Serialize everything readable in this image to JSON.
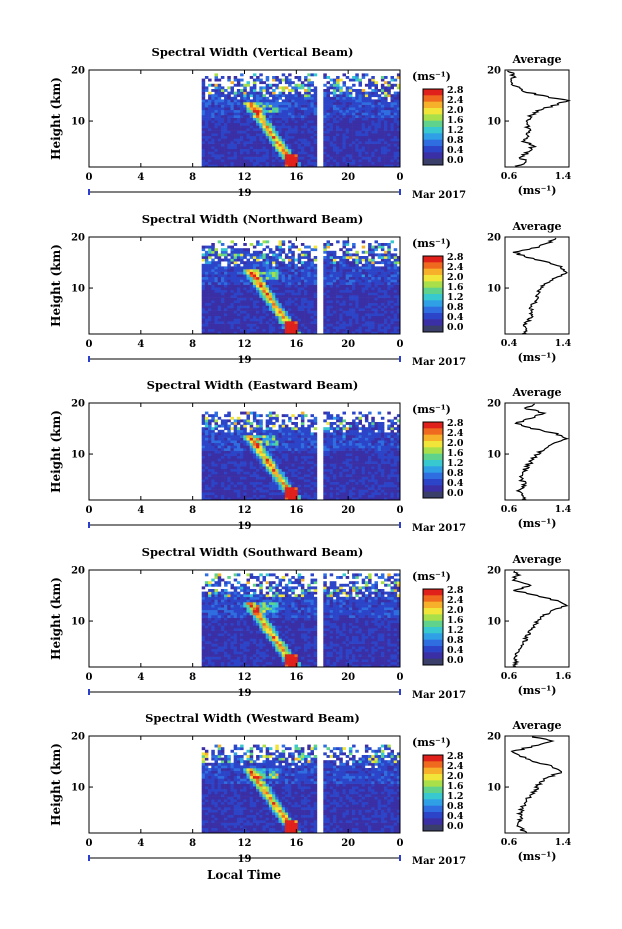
{
  "figure": {
    "x_axis_label": "Local Time",
    "date_label": "Mar 2017",
    "day_label": "19",
    "average_title": "Average",
    "height_label": "Height (km)",
    "unit_label": "(ms⁻¹)",
    "avg_unit_label": "(ms⁻¹)"
  },
  "colorbar": {
    "ticks": [
      "2.8",
      "2.4",
      "2.0",
      "1.6",
      "1.2",
      "0.8",
      "0.4",
      "0.0"
    ],
    "colors": [
      "#e0201a",
      "#ef6a1f",
      "#f6b02a",
      "#f1e53a",
      "#a9e04a",
      "#5fd38c",
      "#38c8d0",
      "#2f9fe6",
      "#2f6ee0",
      "#2c44c8",
      "#3a2fa4",
      "#3a3f6a"
    ]
  },
  "chart_data": [
    {
      "type": "heatmap",
      "title": "Spectral Width (Vertical Beam)",
      "xlabel": "Local Time",
      "ylabel": "Height (km)",
      "xlim": [
        0,
        24
      ],
      "ylim": [
        1,
        20
      ],
      "x_ticks": [
        "0",
        "4",
        "8",
        "12",
        "16",
        "20",
        "0"
      ],
      "y_ticks": [
        "10",
        "20"
      ],
      "data_start_hour": 8.7,
      "data_gap": [
        17.6,
        17.95
      ],
      "top_height": 19.5,
      "colorbar_range": [
        0,
        2.8
      ],
      "average_profile": {
        "xlabel": "(ms⁻¹)",
        "xlim": [
          0.6,
          1.4
        ],
        "x_ticks": [
          "0.6",
          "1.4"
        ],
        "y_ticks": [
          "10",
          "20"
        ],
        "height": [
          1,
          2,
          3,
          4,
          5,
          6,
          7,
          8,
          9,
          10,
          11,
          12,
          13,
          14,
          15,
          16,
          17,
          18,
          19,
          20
        ],
        "value": [
          0.75,
          0.85,
          0.8,
          0.9,
          0.95,
          0.85,
          0.9,
          0.9,
          0.88,
          0.9,
          0.92,
          1.0,
          1.2,
          1.38,
          1.05,
          0.8,
          0.72,
          0.7,
          0.7,
          0.65
        ]
      }
    },
    {
      "type": "heatmap",
      "title": "Spectral Width (Northward Beam)",
      "xlabel": "Local Time",
      "ylabel": "Height (km)",
      "xlim": [
        0,
        24
      ],
      "ylim": [
        1,
        20
      ],
      "x_ticks": [
        "0",
        "4",
        "8",
        "12",
        "16",
        "20",
        "0"
      ],
      "y_ticks": [
        "10",
        "20"
      ],
      "data_start_hour": 8.7,
      "data_gap": [
        17.6,
        17.95
      ],
      "top_height": 19.5,
      "colorbar_range": [
        0,
        2.8
      ],
      "average_profile": {
        "xlabel": "(ms⁻¹)",
        "xlim": [
          0.4,
          1.4
        ],
        "x_ticks": [
          "0.4",
          "1.4"
        ],
        "y_ticks": [
          "10",
          "20"
        ],
        "height": [
          1,
          2,
          3,
          4,
          5,
          6,
          7,
          8,
          9,
          10,
          11,
          12,
          13,
          14,
          15,
          16,
          17,
          18,
          19,
          20
        ],
        "value": [
          0.7,
          0.75,
          0.7,
          0.8,
          0.82,
          0.8,
          0.85,
          0.9,
          0.92,
          0.95,
          1.05,
          1.2,
          1.35,
          1.3,
          1.1,
          0.75,
          0.55,
          0.9,
          1.1,
          1.2
        ]
      }
    },
    {
      "type": "heatmap",
      "title": "Spectral Width (Eastward Beam)",
      "xlabel": "Local Time",
      "ylabel": "Height (km)",
      "xlim": [
        0,
        24
      ],
      "ylim": [
        1,
        20
      ],
      "x_ticks": [
        "0",
        "4",
        "8",
        "12",
        "16",
        "20",
        "0"
      ],
      "y_ticks": [
        "10",
        "20"
      ],
      "data_start_hour": 8.7,
      "data_gap": [
        17.6,
        17.95
      ],
      "top_height": 18.5,
      "colorbar_range": [
        0,
        2.8
      ],
      "average_profile": {
        "xlabel": "(ms⁻¹)",
        "xlim": [
          0.6,
          1.4
        ],
        "x_ticks": [
          "0.6",
          "1.4"
        ],
        "y_ticks": [
          "10",
          "20"
        ],
        "height": [
          1,
          2,
          3,
          4,
          5,
          6,
          7,
          8,
          9,
          10,
          11,
          12,
          13,
          14,
          15,
          16,
          17,
          18,
          19,
          20
        ],
        "value": [
          0.85,
          0.8,
          0.78,
          0.85,
          0.8,
          0.82,
          0.85,
          0.9,
          0.95,
          1.0,
          1.08,
          1.2,
          1.38,
          1.25,
          0.95,
          0.75,
          0.9,
          1.1,
          0.85,
          1.0
        ]
      }
    },
    {
      "type": "heatmap",
      "title": "Spectral Width (Southward Beam)",
      "xlabel": "Local Time",
      "ylabel": "Height (km)",
      "xlim": [
        0,
        24
      ],
      "ylim": [
        1,
        20
      ],
      "x_ticks": [
        "0",
        "4",
        "8",
        "12",
        "16",
        "20",
        "0"
      ],
      "y_ticks": [
        "10",
        "20"
      ],
      "data_start_hour": 8.7,
      "data_gap": [
        17.6,
        17.95
      ],
      "top_height": 19.5,
      "colorbar_range": [
        0,
        2.8
      ],
      "average_profile": {
        "xlabel": "(ms⁻¹)",
        "xlim": [
          0.6,
          1.6
        ],
        "x_ticks": [
          "0.6",
          "1.6"
        ],
        "y_ticks": [
          "10",
          "20"
        ],
        "height": [
          1,
          2,
          3,
          4,
          5,
          6,
          7,
          8,
          9,
          10,
          11,
          12,
          13,
          14,
          15,
          16,
          17,
          18,
          19,
          20
        ],
        "value": [
          0.72,
          0.78,
          0.75,
          0.8,
          0.85,
          0.9,
          0.95,
          1.0,
          1.05,
          1.1,
          1.2,
          1.35,
          1.55,
          1.4,
          1.1,
          0.75,
          1.0,
          0.7,
          0.8,
          0.75
        ]
      }
    },
    {
      "type": "heatmap",
      "title": "Spectral Width (Westward Beam)",
      "xlabel": "Local Time",
      "ylabel": "Height (km)",
      "xlim": [
        0,
        24
      ],
      "ylim": [
        1,
        20
      ],
      "x_ticks": [
        "0",
        "4",
        "8",
        "12",
        "16",
        "20",
        "0"
      ],
      "y_ticks": [
        "10",
        "20"
      ],
      "data_start_hour": 8.7,
      "data_gap": [
        17.6,
        17.95
      ],
      "top_height": 18.5,
      "colorbar_range": [
        0,
        2.8
      ],
      "average_profile": {
        "xlabel": "(ms⁻¹)",
        "xlim": [
          0.6,
          1.4
        ],
        "x_ticks": [
          "0.6",
          "1.4"
        ],
        "y_ticks": [
          "10",
          "20"
        ],
        "height": [
          1,
          2,
          3,
          4,
          5,
          6,
          7,
          8,
          9,
          10,
          11,
          12,
          13,
          14,
          15,
          16,
          17,
          18,
          19,
          20
        ],
        "value": [
          0.85,
          0.8,
          0.75,
          0.8,
          0.78,
          0.82,
          0.85,
          0.9,
          0.95,
          1.0,
          1.05,
          1.15,
          1.3,
          1.2,
          0.95,
          0.8,
          0.7,
          0.95,
          1.2,
          0.9
        ]
      }
    }
  ]
}
